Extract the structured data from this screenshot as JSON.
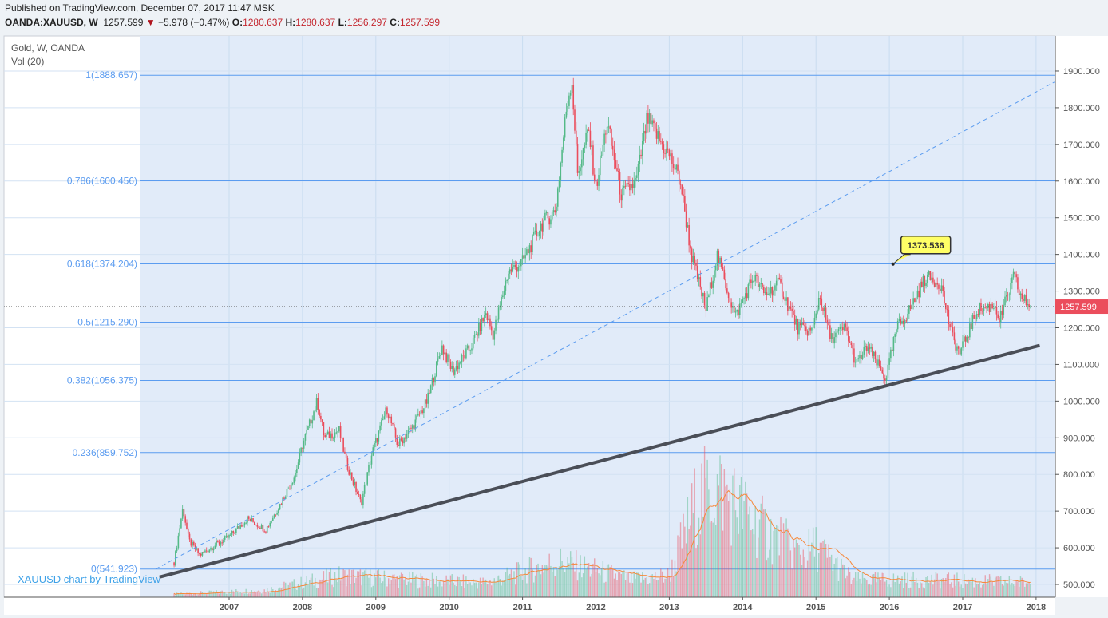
{
  "header": {
    "published": "Published on TradingView.com, December 07, 2017 11:47 MSK",
    "symbol": "OANDA:XAUUSD, W",
    "last": "1257.599",
    "change": "−5.978 (−0.47%)",
    "o_label": "O:",
    "o": "1280.637",
    "h_label": "H:",
    "h": "1280.637",
    "l_label": "L:",
    "l": "1256.297",
    "c_label": "C:",
    "c": "1257.599"
  },
  "legend": {
    "title": "Gold, W, OANDA",
    "vol": "Vol (20)"
  },
  "watermark": "XAUUSD chart by TradingView",
  "colors": {
    "up": "#53b987",
    "down": "#eb4d5c",
    "fib": "#5b9cf0",
    "trend": "#4a4e57"
  },
  "chart_data": {
    "type": "candlestick",
    "title": "Gold, W, OANDA",
    "xlim": [
      2006.0,
      2018.25
    ],
    "ylim": [
      468,
      1960
    ],
    "x_ticks": [
      "2007",
      "2008",
      "2009",
      "2010",
      "2011",
      "2012",
      "2013",
      "2014",
      "2015",
      "2016",
      "2017",
      "2018"
    ],
    "y_ticks": [
      "500.000",
      "600.000",
      "700.000",
      "800.000",
      "900.000",
      "1000.000",
      "1100.000",
      "1200.000",
      "1300.000",
      "1400.000",
      "1500.000",
      "1600.000",
      "1700.000",
      "1800.000",
      "1900.000"
    ],
    "current_price": 1257.599,
    "current_price_label": "1257.599",
    "price_path_approx": [
      [
        2006.25,
        560
      ],
      [
        2006.37,
        710
      ],
      [
        2006.45,
        620
      ],
      [
        2006.6,
        580
      ],
      [
        2006.75,
        600
      ],
      [
        2007.0,
        630
      ],
      [
        2007.25,
        680
      ],
      [
        2007.5,
        650
      ],
      [
        2007.7,
        720
      ],
      [
        2007.9,
        800
      ],
      [
        2008.0,
        880
      ],
      [
        2008.2,
        1000
      ],
      [
        2008.3,
        900
      ],
      [
        2008.5,
        920
      ],
      [
        2008.6,
        830
      ],
      [
        2008.8,
        720
      ],
      [
        2008.95,
        860
      ],
      [
        2009.15,
        980
      ],
      [
        2009.3,
        880
      ],
      [
        2009.5,
        930
      ],
      [
        2009.7,
        1000
      ],
      [
        2009.9,
        1150
      ],
      [
        2010.05,
        1080
      ],
      [
        2010.3,
        1150
      ],
      [
        2010.5,
        1240
      ],
      [
        2010.6,
        1180
      ],
      [
        2010.8,
        1350
      ],
      [
        2011.0,
        1380
      ],
      [
        2011.25,
        1480
      ],
      [
        2011.45,
        1520
      ],
      [
        2011.6,
        1800
      ],
      [
        2011.67,
        1880
      ],
      [
        2011.75,
        1620
      ],
      [
        2011.9,
        1740
      ],
      [
        2012.0,
        1580
      ],
      [
        2012.15,
        1760
      ],
      [
        2012.35,
        1560
      ],
      [
        2012.55,
        1600
      ],
      [
        2012.7,
        1770
      ],
      [
        2012.9,
        1700
      ],
      [
        2013.0,
        1670
      ],
      [
        2013.15,
        1600
      ],
      [
        2013.3,
        1400
      ],
      [
        2013.5,
        1250
      ],
      [
        2013.65,
        1400
      ],
      [
        2013.9,
        1230
      ],
      [
        2014.15,
        1340
      ],
      [
        2014.3,
        1290
      ],
      [
        2014.5,
        1320
      ],
      [
        2014.75,
        1200
      ],
      [
        2014.95,
        1190
      ],
      [
        2015.05,
        1290
      ],
      [
        2015.2,
        1170
      ],
      [
        2015.4,
        1200
      ],
      [
        2015.55,
        1100
      ],
      [
        2015.7,
        1150
      ],
      [
        2015.95,
        1060
      ],
      [
        2016.1,
        1200
      ],
      [
        2016.25,
        1240
      ],
      [
        2016.5,
        1340
      ],
      [
        2016.7,
        1320
      ],
      [
        2016.85,
        1180
      ],
      [
        2016.96,
        1130
      ],
      [
        2017.2,
        1250
      ],
      [
        2017.45,
        1260
      ],
      [
        2017.5,
        1220
      ],
      [
        2017.7,
        1340
      ],
      [
        2017.8,
        1280
      ],
      [
        2017.93,
        1257.6
      ]
    ],
    "volume_profile_approx": [
      [
        2006.25,
        0.02
      ],
      [
        2007.5,
        0.05
      ],
      [
        2008.5,
        0.15
      ],
      [
        2009.5,
        0.12
      ],
      [
        2010.5,
        0.1
      ],
      [
        2011.5,
        0.25
      ],
      [
        2012.5,
        0.12
      ],
      [
        2013.0,
        0.15
      ],
      [
        2013.4,
        0.7
      ],
      [
        2013.7,
        0.75
      ],
      [
        2014.2,
        0.5
      ],
      [
        2014.8,
        0.3
      ],
      [
        2015.0,
        0.35
      ],
      [
        2015.5,
        0.12
      ],
      [
        2016.5,
        0.12
      ],
      [
        2017.9,
        0.1
      ]
    ],
    "fib_levels": [
      {
        "label": "1(1888.657)",
        "value": 1888.657
      },
      {
        "label": "0.786(1600.456)",
        "value": 1600.456
      },
      {
        "label": "0.618(1374.204)",
        "value": 1374.204
      },
      {
        "label": "0.5(1215.290)",
        "value": 1215.29
      },
      {
        "label": "0.382(1056.375)",
        "value": 1056.375
      },
      {
        "label": "0.236(859.752)",
        "value": 859.752
      },
      {
        "label": "0(541.923)",
        "value": 541.923
      }
    ],
    "annotation": {
      "label": "1373.536",
      "x": 2016.05,
      "value": 1373.536
    },
    "trendlines": [
      {
        "style": "dashed",
        "from": [
          2006.0,
          541.9
        ],
        "to": [
          2018.25,
          1870
        ]
      },
      {
        "style": "solid",
        "from": [
          2006.05,
          520
        ],
        "to": [
          2018.05,
          1152
        ]
      }
    ]
  }
}
